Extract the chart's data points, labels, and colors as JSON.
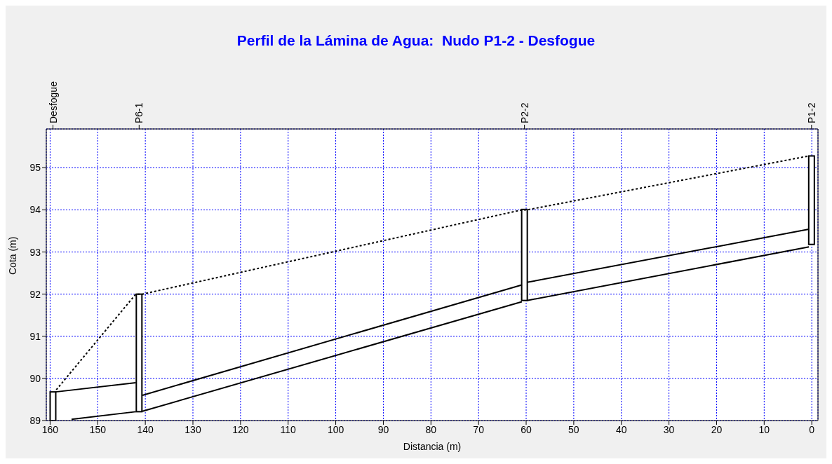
{
  "chart_data": {
    "type": "line",
    "title": "Perfil de la Lámina de Agua:  Nudo P1-2 - Desfogue",
    "xlabel": "Distancia (m)",
    "ylabel": "Cota (m)",
    "xlim": [
      160.8,
      -1.3
    ],
    "ylim": [
      89,
      95.92
    ],
    "xticks": [
      160,
      150,
      140,
      130,
      120,
      110,
      100,
      90,
      80,
      70,
      60,
      50,
      40,
      30,
      20,
      10,
      0
    ],
    "yticks": [
      89,
      90,
      91,
      92,
      93,
      94,
      95
    ],
    "annotations": [
      "Desfogue",
      "P6-1",
      "P2-2",
      "P1-2"
    ],
    "grid": true,
    "marker": "none",
    "series": [
      {
        "color": "#000000",
        "line_style": "dotted",
        "x": [
          158.7,
          142,
          140.6,
          60.9,
          59.8,
          0.6
        ],
        "values": [
          89.73,
          92.0,
          92.0,
          94.0,
          94.0,
          95.28
        ]
      },
      {
        "color": "#000000",
        "line_style": "solid",
        "x": [
          158.8,
          142,
          141.3,
          140.6,
          60.9,
          60.3,
          59.8,
          0.6
        ],
        "values": [
          89.68,
          89.9,
          null,
          89.6,
          92.22,
          null,
          92.28,
          93.54
        ]
      },
      {
        "color": "#000000",
        "line_style": "solid",
        "x": [
          155.5,
          142,
          141.3,
          140.6,
          60.9,
          60.3,
          59.8,
          0.6
        ],
        "values": [
          89.03,
          89.21,
          null,
          89.22,
          91.82,
          null,
          91.85,
          93.12
        ]
      },
      {
        "type": "bar",
        "color": "#ffffff",
        "x": [
          159.4,
          141.3,
          60.35,
          0.05
        ],
        "base": [
          89,
          89.21,
          91.85,
          93.18
        ],
        "values": [
          0.68,
          2.79,
          2.16,
          2.1
        ]
      }
    ]
  }
}
